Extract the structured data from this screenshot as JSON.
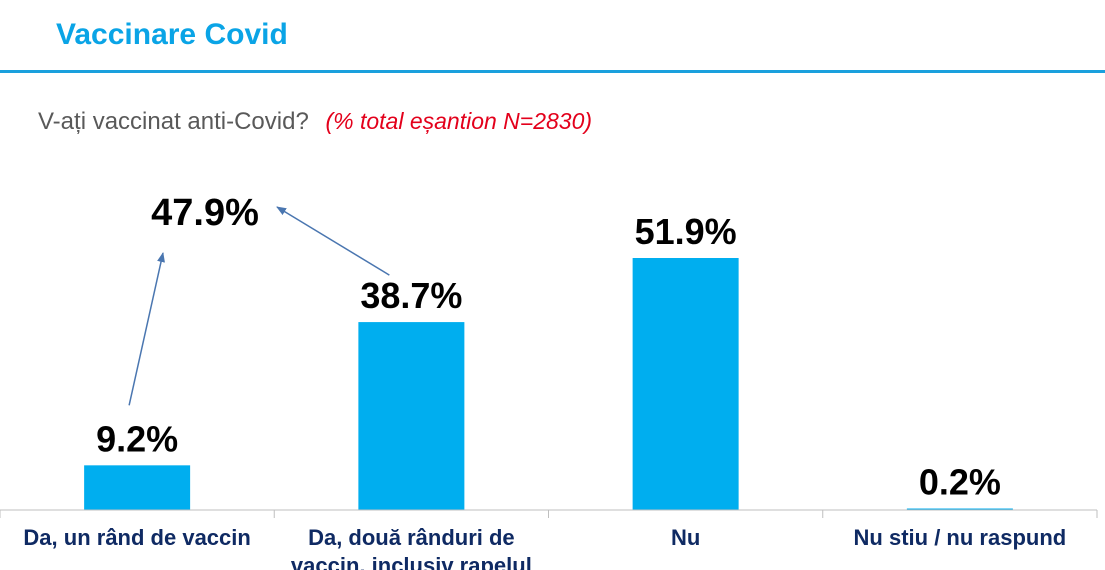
{
  "header": {
    "title": "Vaccinare Covid"
  },
  "question": {
    "text": "V-ați vaccinat anti-Covid?",
    "note": "(% total eșantion   N=2830)"
  },
  "colors": {
    "bar": "#00aeef",
    "title": "#0aa4e6",
    "category_text": "#0f2a63",
    "arrow": "#4a76b0",
    "note": "#e3001b"
  },
  "chart_data": {
    "type": "bar",
    "categories": [
      "Da, un rând de vaccin",
      "Da, două rânduri de vaccin, inclusiv rapelul",
      "Nu",
      "Nu stiu / nu raspund"
    ],
    "category_lines": [
      [
        "Da, un rând de vaccin"
      ],
      [
        "Da, două rânduri de",
        "vaccin, inclusiv rapelul"
      ],
      [
        "Nu"
      ],
      [
        "Nu stiu / nu raspund"
      ]
    ],
    "values": [
      9.2,
      38.7,
      51.9,
      0.2
    ],
    "value_labels": [
      "9.2%",
      "38.7%",
      "51.9%",
      "0.2%"
    ],
    "combined_total": {
      "value": 47.9,
      "label": "47.9%",
      "combines": [
        0,
        1
      ]
    },
    "ylim": [
      0,
      60
    ],
    "grid": false,
    "legend": "none"
  }
}
